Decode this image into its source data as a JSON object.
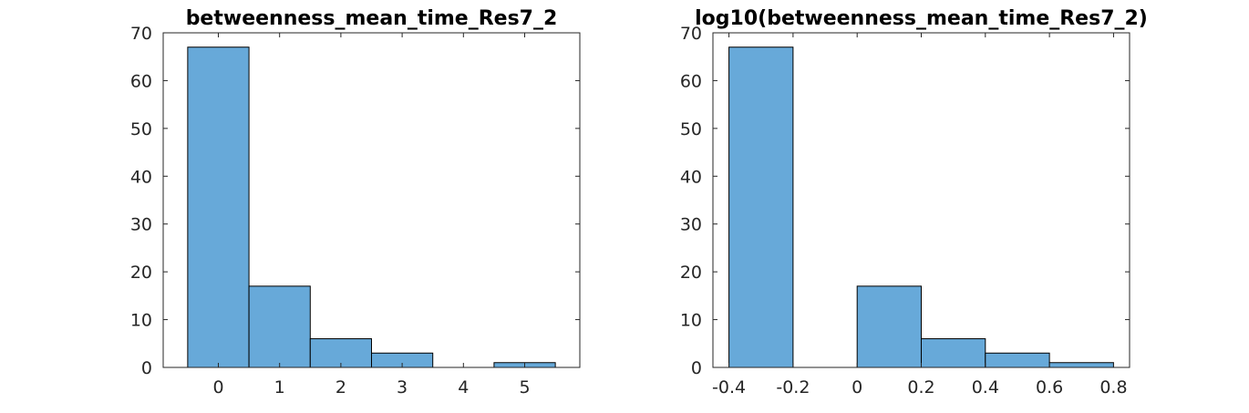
{
  "chart_data": [
    {
      "type": "bar",
      "title": "betweenness_mean_time_Res7_2",
      "xlabel": "",
      "ylabel": "",
      "xlim": [
        -0.9,
        5.9
      ],
      "ylim": [
        0,
        70
      ],
      "xticks": [
        0,
        1,
        2,
        3,
        4,
        5
      ],
      "yticks": [
        0,
        10,
        20,
        30,
        40,
        50,
        60,
        70
      ],
      "grid": false,
      "bar_color": "#67a9d9",
      "bins": [
        {
          "start": -0.5,
          "end": 0.5,
          "value": 67
        },
        {
          "start": 0.5,
          "end": 1.5,
          "value": 17
        },
        {
          "start": 1.5,
          "end": 2.5,
          "value": 6
        },
        {
          "start": 2.5,
          "end": 3.5,
          "value": 3
        },
        {
          "start": 3.5,
          "end": 4.5,
          "value": 0
        },
        {
          "start": 4.5,
          "end": 5.5,
          "value": 1
        }
      ]
    },
    {
      "type": "bar",
      "title": "log10(betweenness_mean_time_Res7_2)",
      "xlabel": "",
      "ylabel": "",
      "xlim": [
        -0.45,
        0.85
      ],
      "ylim": [
        0,
        70
      ],
      "xticks": [
        -0.4,
        -0.2,
        0,
        0.2,
        0.4,
        0.6,
        0.8
      ],
      "yticks": [
        0,
        10,
        20,
        30,
        40,
        50,
        60,
        70
      ],
      "grid": false,
      "bar_color": "#67a9d9",
      "bins": [
        {
          "start": -0.4,
          "end": -0.2,
          "value": 67
        },
        {
          "start": -0.2,
          "end": 0.0,
          "value": 0
        },
        {
          "start": 0.0,
          "end": 0.2,
          "value": 17
        },
        {
          "start": 0.2,
          "end": 0.4,
          "value": 6
        },
        {
          "start": 0.4,
          "end": 0.6,
          "value": 3
        },
        {
          "start": 0.6,
          "end": 0.8,
          "value": 1
        }
      ]
    }
  ]
}
